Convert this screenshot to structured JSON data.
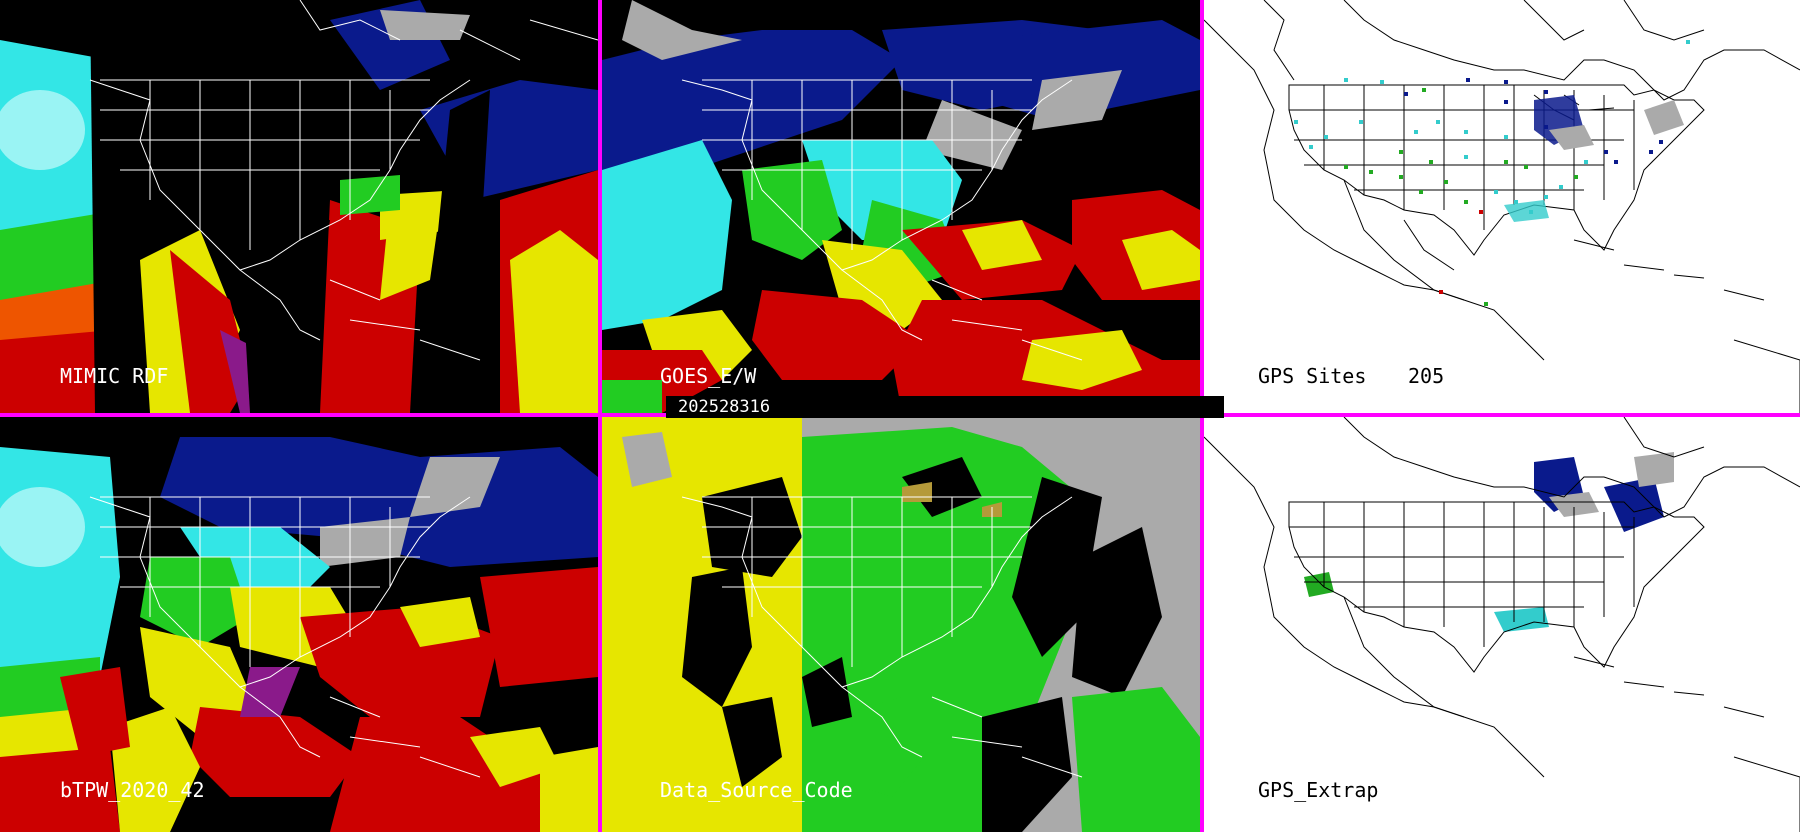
{
  "timestamp": "202528316",
  "panels": {
    "mimic_rdf": {
      "label": "MIMIC RDF"
    },
    "goes_ew": {
      "label": "GOES_E/W"
    },
    "gps_sites": {
      "label": "GPS Sites",
      "count": "205"
    },
    "btpw": {
      "label": "bTPW_2020_42"
    },
    "data_source_code": {
      "label": "Data_Source_Code"
    },
    "gps_extrap": {
      "label": "GPS_Extrap"
    }
  },
  "colors": {
    "divider": "#ff00ff",
    "cyan": "#33e6e6",
    "green": "#22cc22",
    "yellow": "#e6e600",
    "red": "#cc0000",
    "blue": "#0a1a8c",
    "gray": "#aaaaaa"
  }
}
